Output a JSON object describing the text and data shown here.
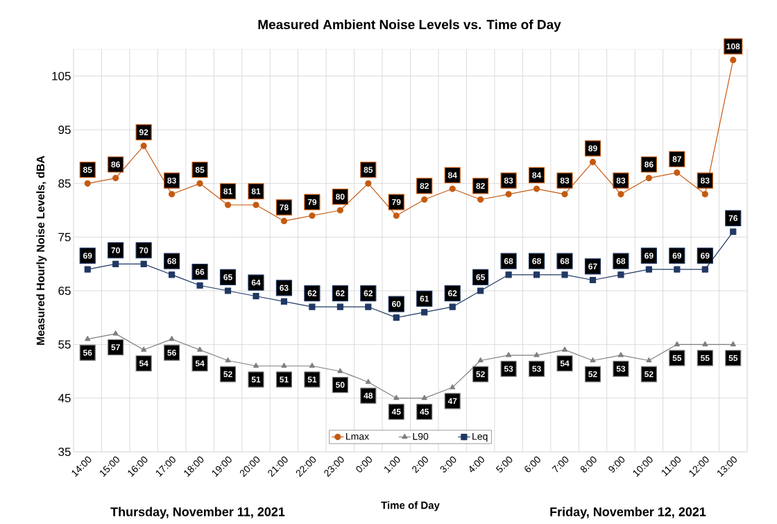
{
  "chart_data": {
    "type": "line",
    "title": "Measured Ambient Noise Levels vs. Time of Day",
    "xlabel": "Time of Day",
    "ylabel": "Measured Hourly Noise Levels, dBA",
    "categories": [
      "14:00",
      "15:00",
      "16:00",
      "17:00",
      "18:00",
      "19:00",
      "20:00",
      "21:00",
      "22:00",
      "23:00",
      "0:00",
      "1:00",
      "2:00",
      "3:00",
      "4:00",
      "5:00",
      "6:00",
      "7:00",
      "8:00",
      "9:00",
      "10:00",
      "11:00",
      "12:00",
      "13:00"
    ],
    "series": [
      {
        "name": "Lmax",
        "color": "#c55a11",
        "marker": "circle",
        "values": [
          85,
          86,
          92,
          83,
          85,
          81,
          81,
          78,
          79,
          80,
          85,
          79,
          82,
          84,
          82,
          83,
          84,
          83,
          89,
          83,
          86,
          87,
          83,
          108
        ]
      },
      {
        "name": "L90",
        "color": "#7f7f7f",
        "marker": "triangle",
        "values": [
          56,
          57,
          54,
          56,
          54,
          52,
          51,
          51,
          51,
          50,
          48,
          45,
          45,
          47,
          52,
          53,
          53,
          54,
          52,
          53,
          52,
          55,
          55,
          55
        ]
      },
      {
        "name": "Leq",
        "color": "#203864",
        "marker": "square",
        "values": [
          69,
          70,
          70,
          68,
          66,
          65,
          64,
          63,
          62,
          62,
          62,
          60,
          61,
          62,
          65,
          68,
          68,
          68,
          67,
          68,
          69,
          69,
          69,
          76
        ]
      }
    ],
    "ylim": [
      35,
      110
    ],
    "yticks": [
      35,
      45,
      55,
      65,
      75,
      85,
      95,
      105
    ],
    "grid": true,
    "legend": "bottom",
    "data_labels": true,
    "annotations": [
      "Thursday, November 11, 2021",
      "Friday, November 12, 2021"
    ]
  }
}
